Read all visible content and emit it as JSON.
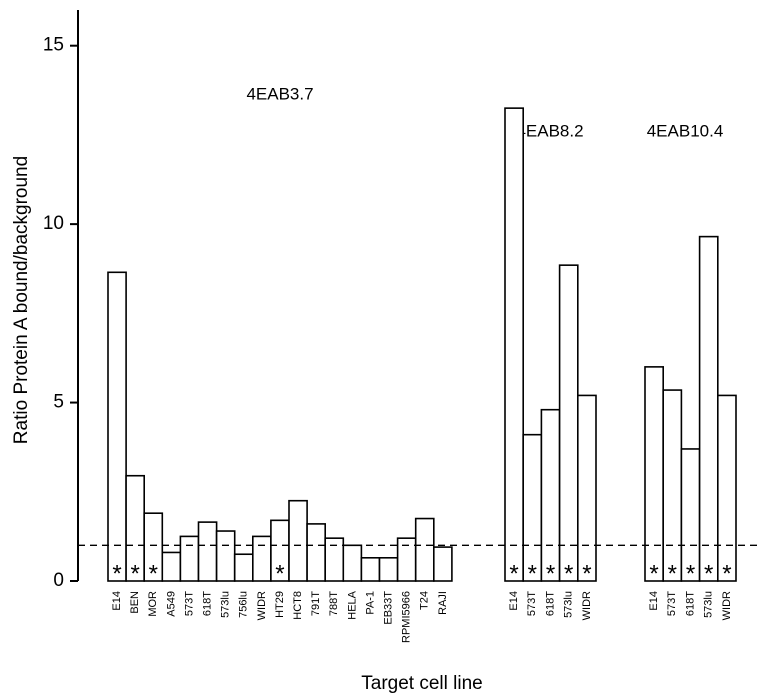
{
  "chart_data": {
    "type": "bar",
    "y_label": "Ratio Protein A bound/background",
    "x_label": "Target cell line",
    "ylim": [
      0,
      16
    ],
    "yticks": [
      0,
      5,
      10,
      15
    ],
    "threshold": 1,
    "marker_symbol": "*",
    "color": "#000000",
    "groups": [
      {
        "name": "4EAB3.7",
        "categories": [
          "E14",
          "BEN",
          "MOR",
          "A549",
          "573T",
          "618T",
          "573lu",
          "756lu",
          "WIDR",
          "HT29",
          "HCT8",
          "791T",
          "788T",
          "HELA",
          "PA-1",
          "EB33T",
          "RPMI5966",
          "T24",
          "RAJI"
        ],
        "values": [
          8.65,
          2.95,
          1.9,
          0.8,
          1.25,
          1.65,
          1.4,
          0.75,
          1.25,
          1.7,
          2.25,
          1.6,
          1.2,
          1.0,
          0.65,
          0.65,
          1.2,
          1.75,
          0.95
        ],
        "marked": [
          true,
          true,
          true,
          false,
          false,
          false,
          false,
          false,
          false,
          true,
          false,
          false,
          false,
          false,
          false,
          false,
          false,
          false,
          false
        ]
      },
      {
        "name": "4EAB8.2",
        "categories": [
          "E14",
          "573T",
          "618T",
          "573lu",
          "WIDR"
        ],
        "values": [
          13.25,
          4.1,
          4.8,
          8.85,
          5.2
        ],
        "marked": [
          true,
          true,
          true,
          true,
          true
        ]
      },
      {
        "name": "4EAB10.4",
        "categories": [
          "E14",
          "573T",
          "618T",
          "573lu",
          "WIDR"
        ],
        "values": [
          6.0,
          5.35,
          3.7,
          9.65,
          5.2
        ],
        "marked": [
          true,
          true,
          true,
          true,
          true
        ]
      }
    ]
  }
}
